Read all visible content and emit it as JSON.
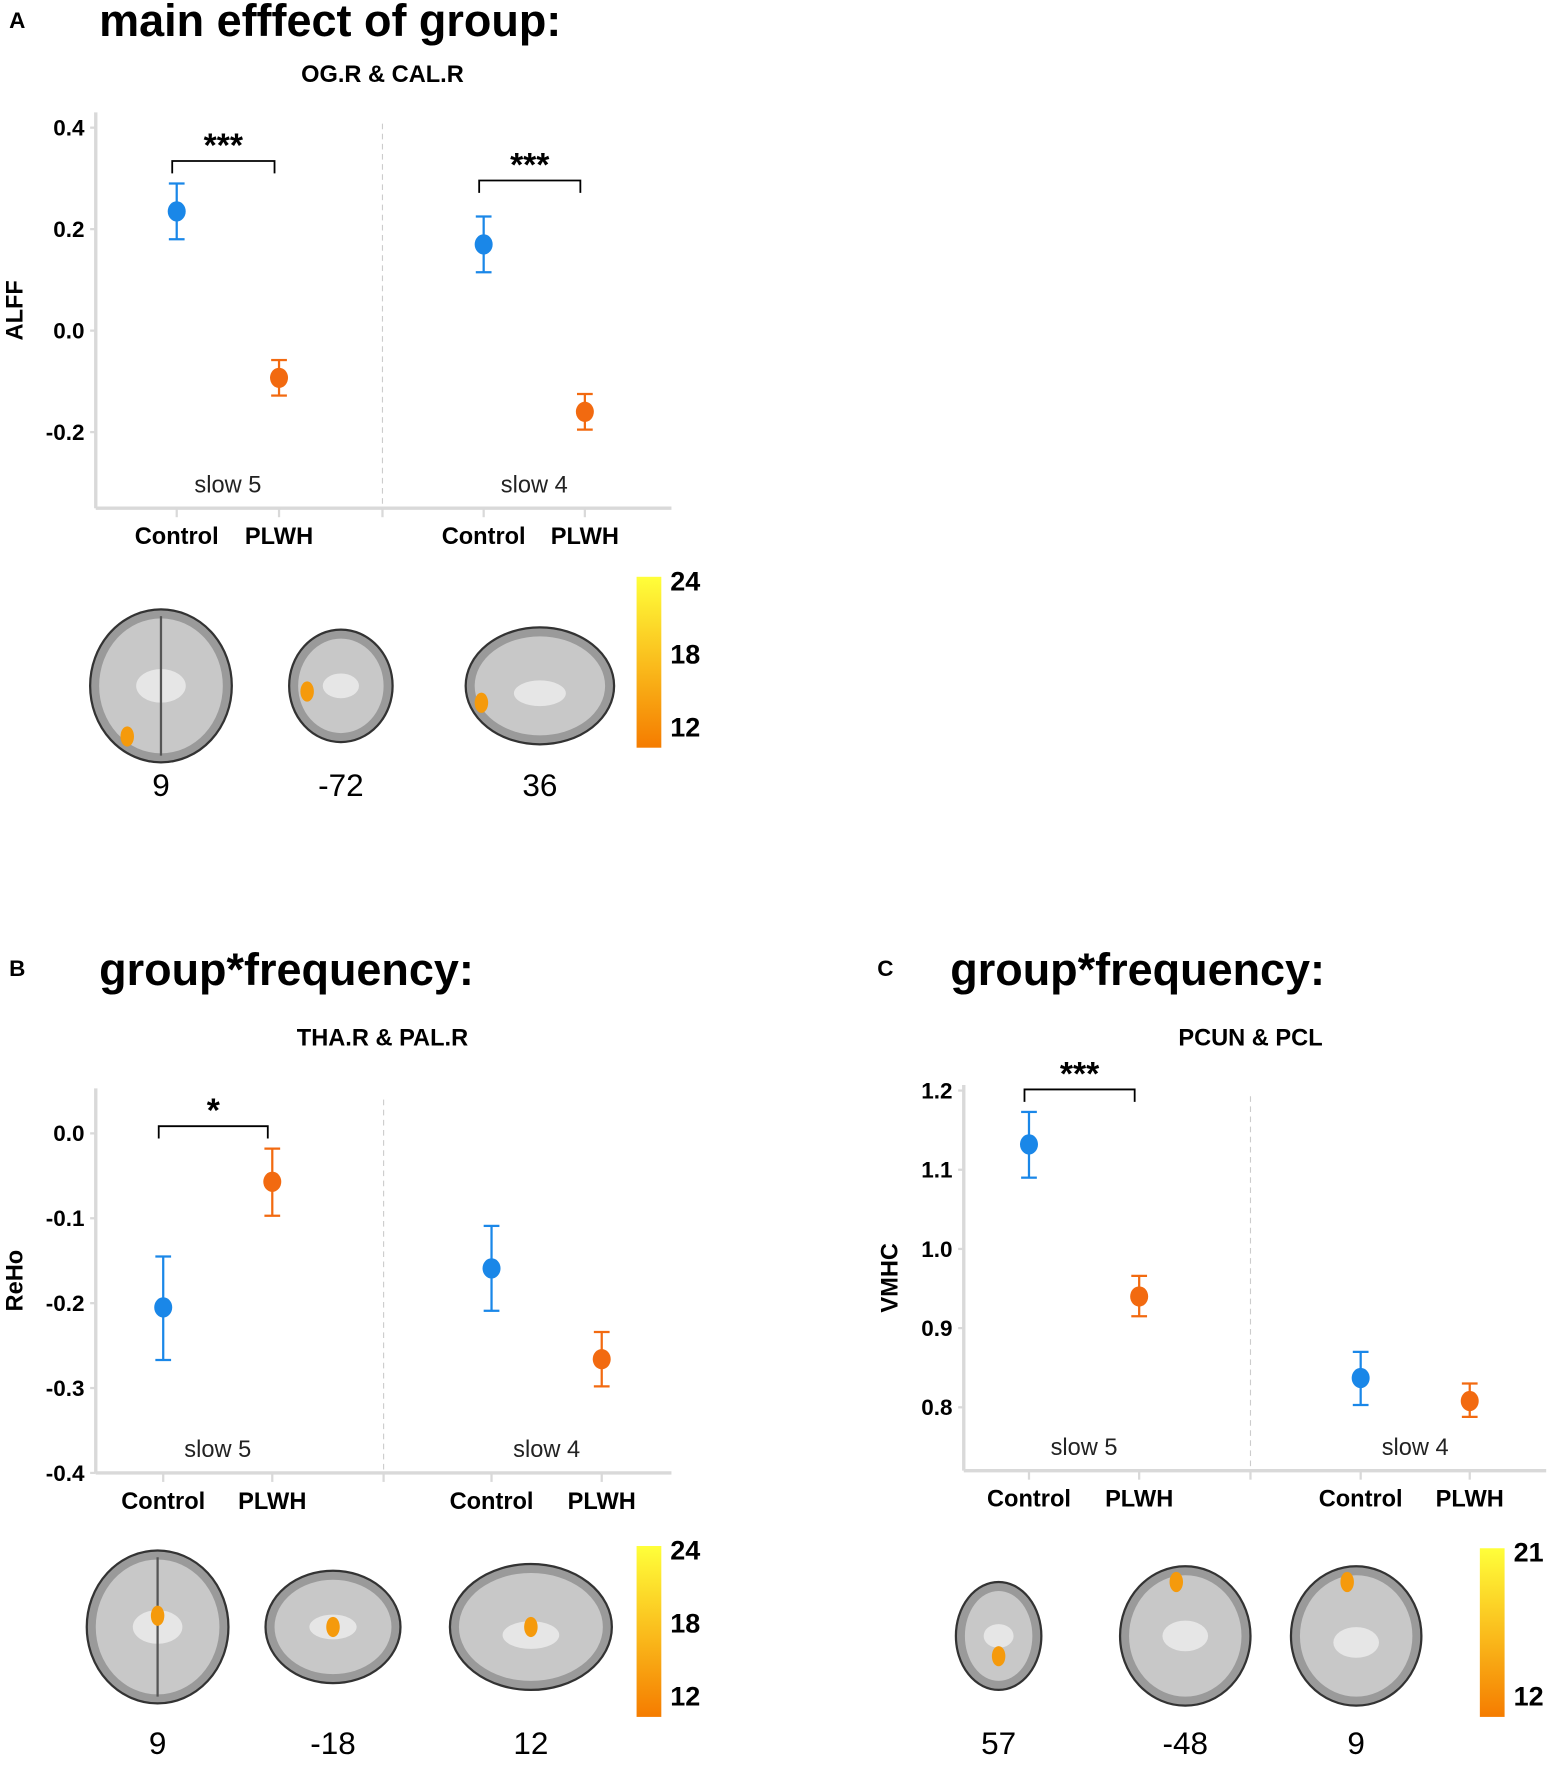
{
  "colors": {
    "control": "#1a87e8",
    "plwh": "#f26a10",
    "axis": "#d9d9d9",
    "colormap_low": "#f57c00",
    "colormap_high": "#ffff3a"
  },
  "chart_data": [
    {
      "type": "scatter",
      "panel": "A",
      "title": "main efffect of group:",
      "subtitle": "OG.R & CAL.R",
      "ylabel": "ALFF",
      "ylim": [
        -0.35,
        0.43
      ],
      "yticks": [
        0.4,
        0.2,
        0.0,
        -0.2
      ],
      "ytick_labels": [
        "0.4",
        "0.2",
        "0.0",
        "-0.2"
      ],
      "facets": [
        {
          "label": "slow 5",
          "categories": [
            "Control",
            "PLWH"
          ],
          "mean": [
            0.235,
            -0.093
          ],
          "lower": [
            0.18,
            -0.128
          ],
          "upper": [
            0.29,
            -0.058
          ],
          "significance": "***"
        },
        {
          "label": "slow 4",
          "categories": [
            "Control",
            "PLWH"
          ],
          "mean": [
            0.17,
            -0.16
          ],
          "lower": [
            0.115,
            -0.195
          ],
          "upper": [
            0.225,
            -0.125
          ],
          "significance": "***"
        }
      ],
      "slices": [
        "9",
        "-72",
        "36"
      ],
      "colorbar": [
        "24",
        "18",
        "12"
      ]
    },
    {
      "type": "scatter",
      "panel": "B",
      "title": "group*frequency:",
      "subtitle": "THA.R & PAL.R",
      "ylabel": "ReHo",
      "ylim": [
        -0.4,
        0.053
      ],
      "yticks": [
        0.0,
        -0.1,
        -0.2,
        -0.3,
        -0.4
      ],
      "ytick_labels": [
        "0.0",
        "-0.1",
        "-0.2",
        "-0.3",
        "-0.4"
      ],
      "facets": [
        {
          "label": "slow 5",
          "categories": [
            "Control",
            "PLWH"
          ],
          "mean": [
            -0.205,
            -0.057
          ],
          "lower": [
            -0.267,
            -0.097
          ],
          "upper": [
            -0.145,
            -0.018
          ],
          "significance": "*"
        },
        {
          "label": "slow 4",
          "categories": [
            "Control",
            "PLWH"
          ],
          "mean": [
            -0.159,
            -0.266
          ],
          "lower": [
            -0.209,
            -0.298
          ],
          "upper": [
            -0.109,
            -0.234
          ],
          "significance": ""
        }
      ],
      "slices": [
        "9",
        "-18",
        "12"
      ],
      "colorbar": [
        "24",
        "18",
        "12"
      ]
    },
    {
      "type": "scatter",
      "panel": "C",
      "title": "group*frequency:",
      "subtitle": "PCUN & PCL",
      "ylabel": "VMHC",
      "ylim": [
        0.72,
        1.207
      ],
      "yticks": [
        1.2,
        1.1,
        1.0,
        0.9,
        0.8
      ],
      "ytick_labels": [
        "1.2",
        "1.1",
        "1.0",
        "0.9",
        "0.8"
      ],
      "facets": [
        {
          "label": "slow 5",
          "categories": [
            "Control",
            "PLWH"
          ],
          "mean": [
            1.132,
            0.94
          ],
          "lower": [
            1.09,
            0.915
          ],
          "upper": [
            1.173,
            0.966
          ],
          "significance": "***"
        },
        {
          "label": "slow 4",
          "categories": [
            "Control",
            "PLWH"
          ],
          "mean": [
            0.837,
            0.808
          ],
          "lower": [
            0.803,
            0.788
          ],
          "upper": [
            0.87,
            0.83
          ],
          "significance": ""
        }
      ],
      "slices": [
        "57",
        "-48",
        "9"
      ],
      "colorbar": [
        "21",
        "12"
      ]
    }
  ]
}
